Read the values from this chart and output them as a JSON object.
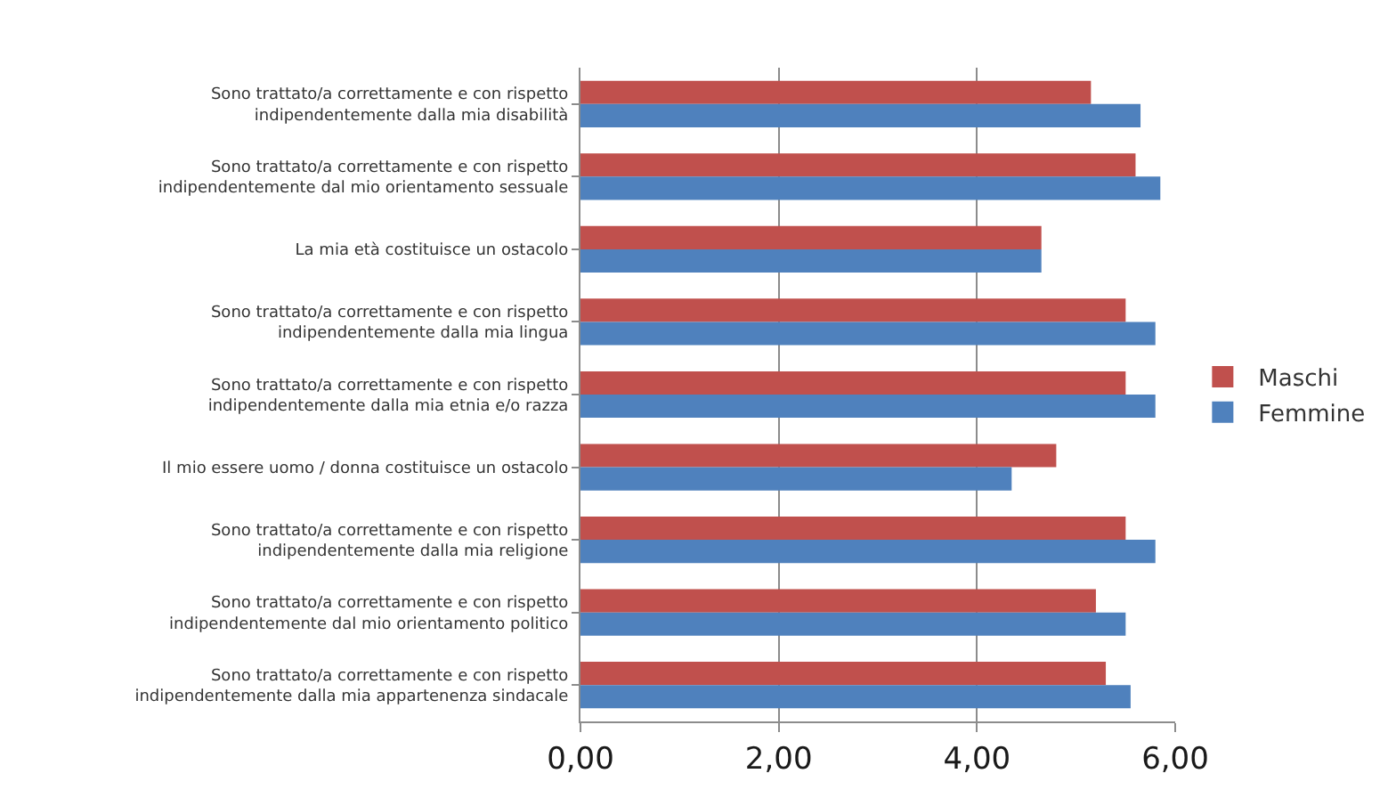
{
  "chart_data": {
    "type": "bar",
    "orientation": "horizontal",
    "categories": [
      "Sono trattato/a correttamente e con rispetto\nindipendentemente dalla mia disabilità",
      "Sono trattato/a correttamente e con rispetto\nindipendentemente dal mio orientamento sessuale",
      "La mia età costituisce un ostacolo",
      "Sono trattato/a correttamente e con rispetto\nindipendentemente dalla mia lingua",
      "Sono trattato/a correttamente e con rispetto\nindipendentemente dalla mia etnia e/o razza",
      "Il mio essere uomo / donna costituisce un ostacolo",
      "Sono trattato/a correttamente e con rispetto\nindipendentemente dalla mia religione",
      "Sono trattato/a correttamente e con rispetto\nindipendentemente dal mio orientamento politico",
      "Sono trattato/a correttamente e con rispetto\nindipendentemente dalla mia appartenenza sindacale"
    ],
    "series": [
      {
        "name": "Maschi",
        "color": "#c0504d",
        "values": [
          5.15,
          5.6,
          4.65,
          5.5,
          5.5,
          4.8,
          5.5,
          5.2,
          5.3
        ]
      },
      {
        "name": "Femmine",
        "color": "#4f81bd",
        "values": [
          5.65,
          5.85,
          4.65,
          5.8,
          5.8,
          4.35,
          5.8,
          5.5,
          5.55
        ]
      }
    ],
    "xlim": [
      0,
      6
    ],
    "xticks": [
      {
        "value": 0,
        "label": "0,00"
      },
      {
        "value": 2,
        "label": "2,00"
      },
      {
        "value": 4,
        "label": "4,00"
      },
      {
        "value": 6,
        "label": "6,00"
      }
    ],
    "grid": "x",
    "legend": "right"
  }
}
